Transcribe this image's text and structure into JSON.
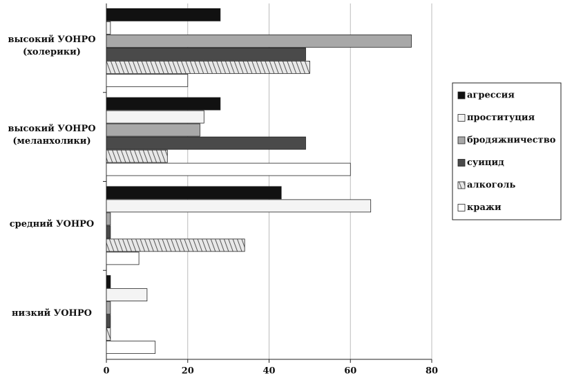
{
  "chart_data": {
    "type": "barh",
    "categories": [
      "высокий УОНРО (холерики)",
      "высокий УОНРО (меланхолики)",
      "средний УОНРО",
      "низкий УОНРО"
    ],
    "series": [
      {
        "name": "агрессия",
        "color": "#111111",
        "values": [
          28,
          28,
          43,
          1
        ]
      },
      {
        "name": "проституция",
        "color": "#f4f4f4",
        "values": [
          1,
          24,
          65,
          10
        ]
      },
      {
        "name": "бродяжничество",
        "color": "#a8a8a8",
        "values": [
          75,
          23,
          1,
          1
        ]
      },
      {
        "name": "суицид",
        "color": "#4a4a4a",
        "values": [
          49,
          49,
          1,
          1
        ]
      },
      {
        "name": "алкоголь",
        "color": "#cfcfcf",
        "pattern": "diagonal",
        "values": [
          50,
          15,
          34,
          1
        ]
      },
      {
        "name": "кражи",
        "color": "#ffffff",
        "values": [
          20,
          60,
          8,
          12
        ]
      }
    ],
    "xlim": [
      0,
      80
    ],
    "xticks": [
      0,
      20,
      40,
      60,
      80
    ],
    "grid": true,
    "legend": "right"
  }
}
